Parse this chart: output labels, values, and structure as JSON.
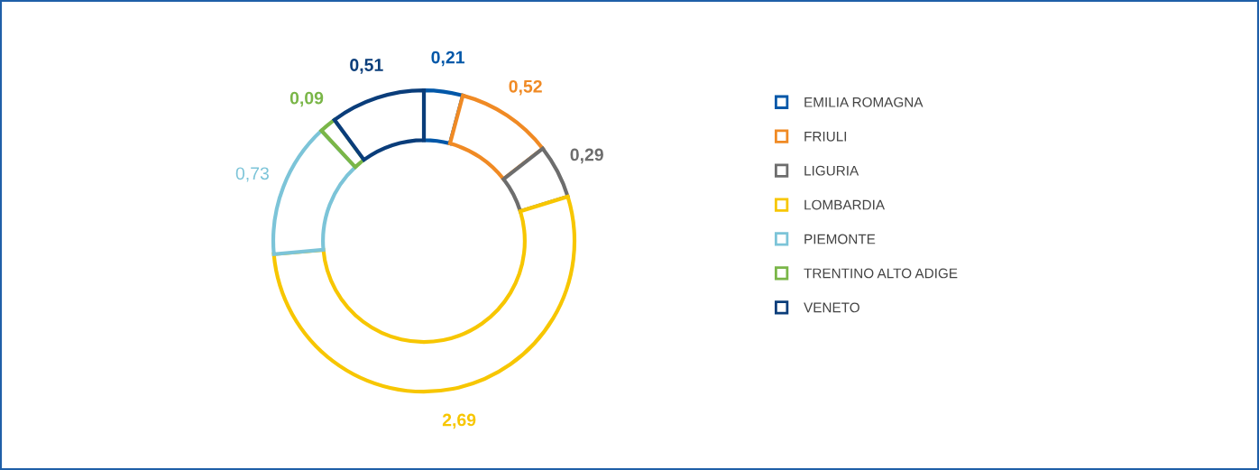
{
  "chart_data": {
    "type": "donut",
    "categories": [
      "EMILIA ROMAGNA",
      "FRIULI",
      "LIGURIA",
      "LOMBARDIA",
      "PIEMONTE",
      "TRENTINO ALTO ADIGE",
      "VENETO"
    ],
    "values": [
      0.21,
      0.52,
      0.29,
      2.69,
      0.73,
      0.09,
      0.51
    ],
    "value_labels": [
      "0,21",
      "0,52",
      "0,29",
      "2,69",
      "0,73",
      "0,09",
      "0,51"
    ],
    "colors": [
      "#0057a8",
      "#f08a24",
      "#6d6d6d",
      "#f7c600",
      "#7cc4d8",
      "#7ab648",
      "#0a3d7a"
    ],
    "legend": "right"
  }
}
